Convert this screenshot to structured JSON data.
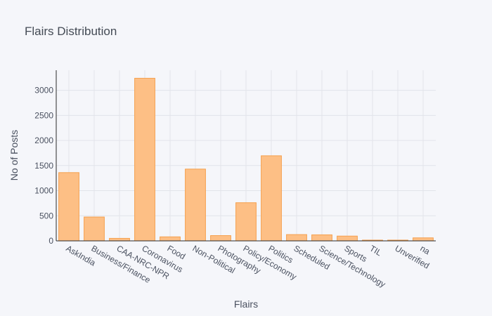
{
  "chart_data": {
    "type": "bar",
    "title": "Flairs Distribution",
    "xlabel": "Flairs",
    "ylabel": "No of Posts",
    "categories": [
      "AskIndia",
      "Business/Finance",
      "CAA-NRC-NPR",
      "Coronavirus",
      "Food",
      "Non-Political",
      "Photography",
      "Policy/Economy",
      "Politics",
      "Scheduled",
      "Science/Technology",
      "Sports",
      "TIL",
      "Unverified",
      "na"
    ],
    "values": [
      1360,
      475,
      50,
      3240,
      80,
      1430,
      105,
      760,
      1695,
      125,
      120,
      95,
      15,
      15,
      60
    ],
    "ylim": [
      0,
      3400
    ],
    "yticks": [
      0,
      500,
      1000,
      1500,
      2000,
      2500,
      3000
    ],
    "grid": true,
    "bar_color": "#fdbf85",
    "bar_edge_color": "#f5a04e",
    "background": "#f5f6fa"
  }
}
